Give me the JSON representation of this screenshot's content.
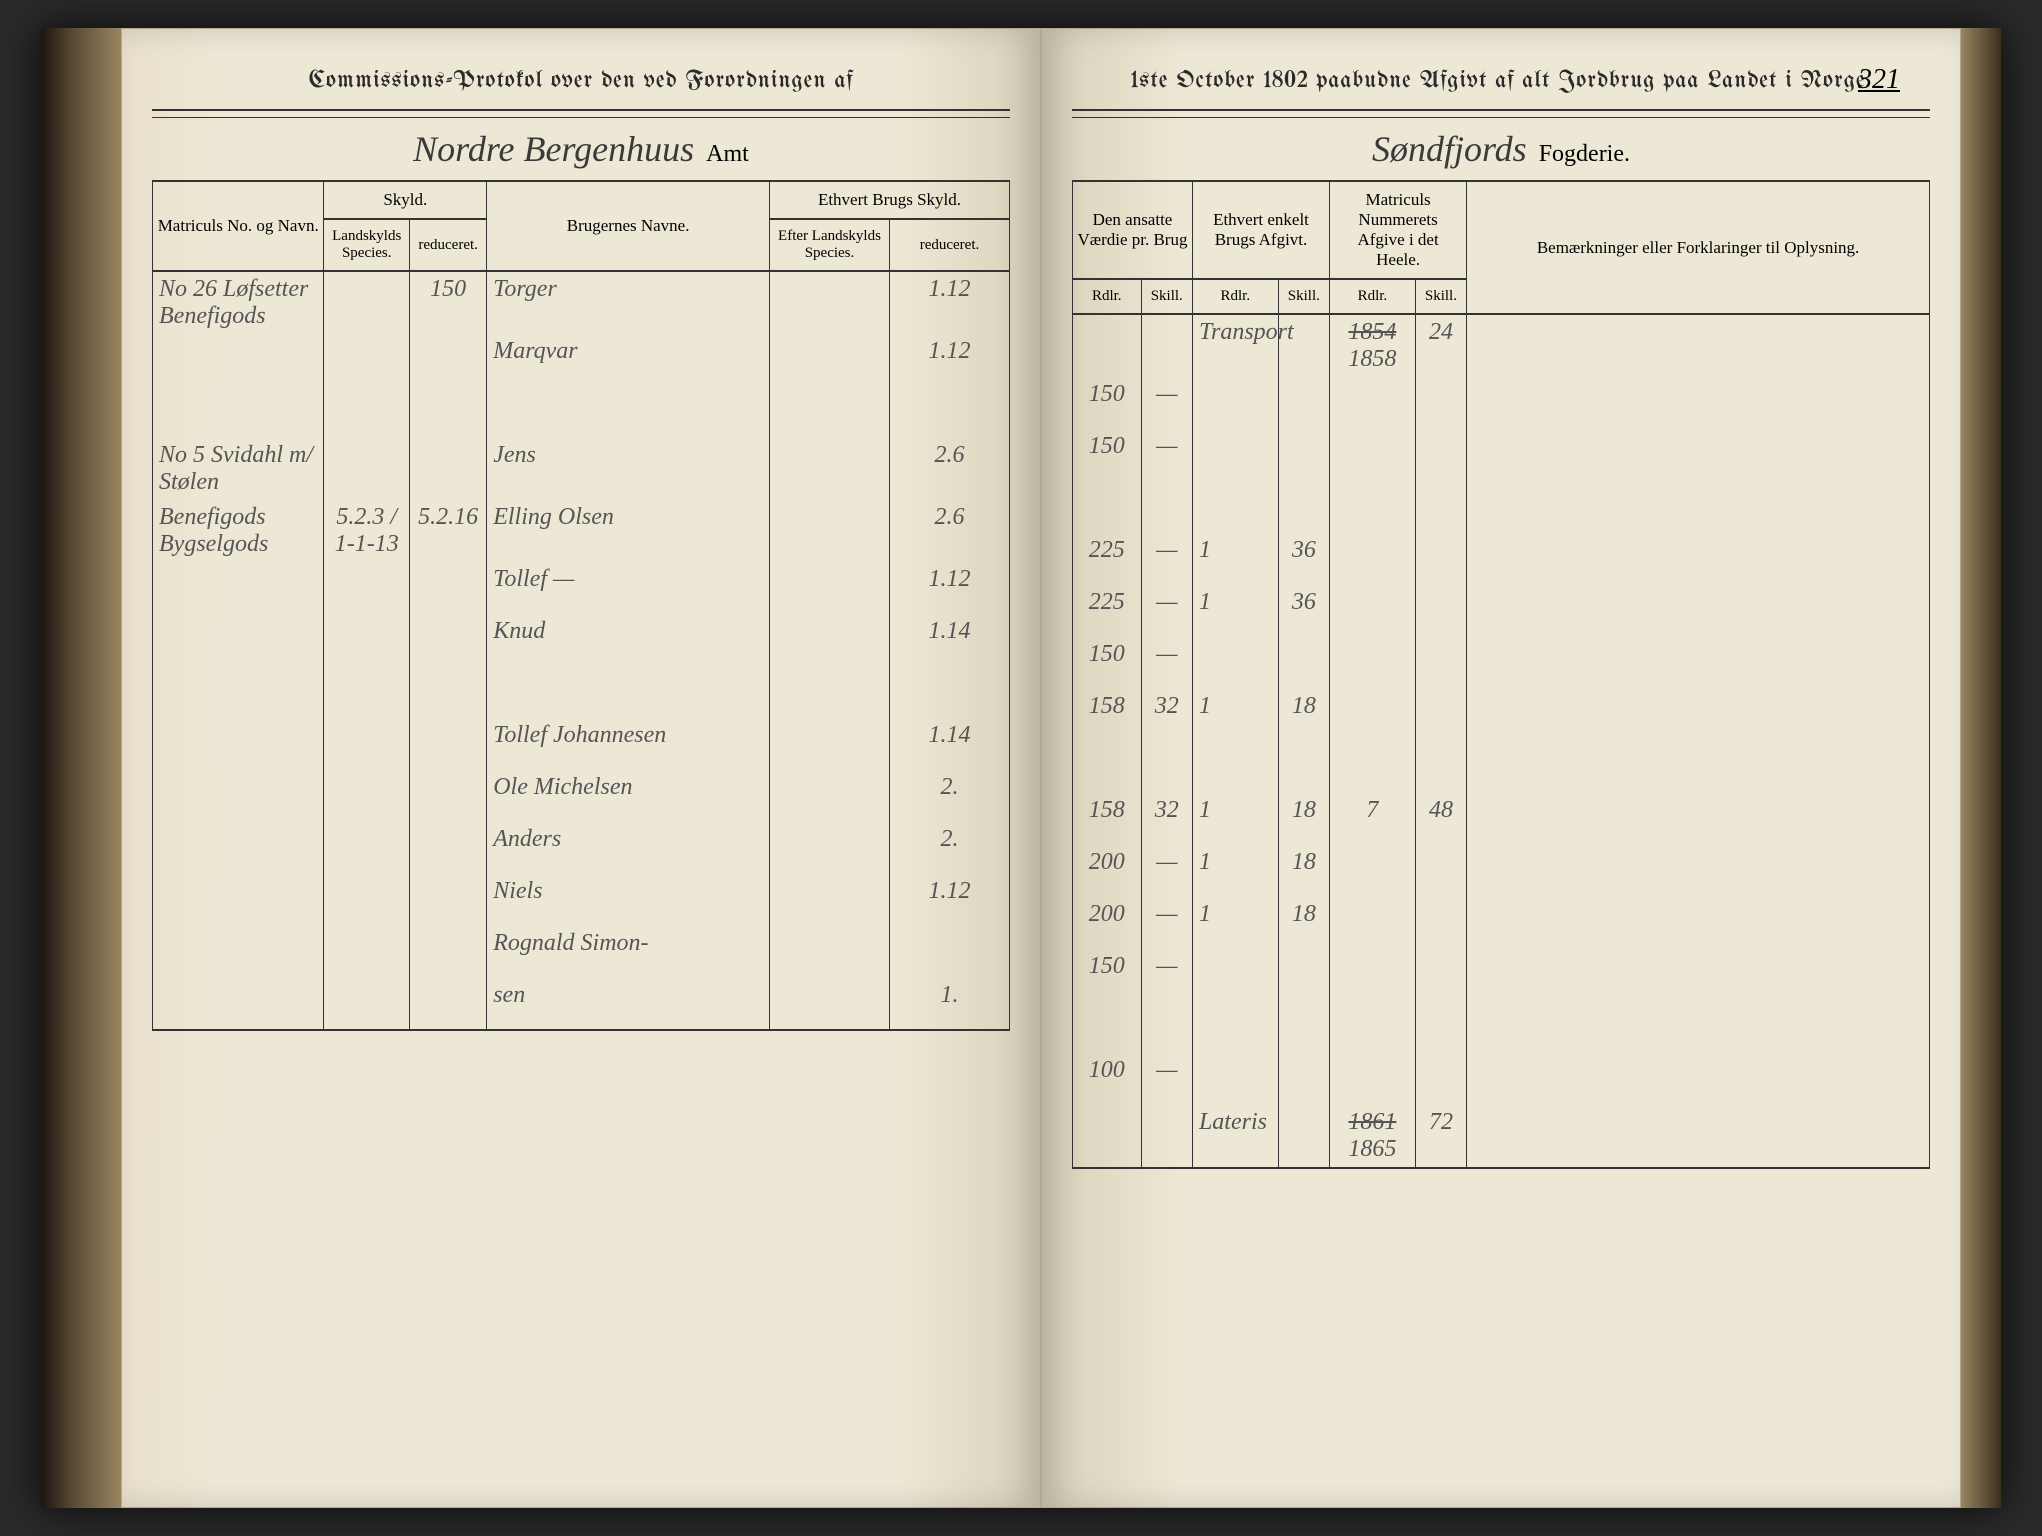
{
  "page_number": "321",
  "background_color": "#ede7d5",
  "ink_color": "#3a3a3a",
  "rule_color": "#333333",
  "left": {
    "title": "Commissions-Protokol over den ved Forordningen af",
    "region_script": "Nordre Bergenhuus",
    "region_suffix": "Amt",
    "headers": {
      "col1": "Matriculs No. og Navn.",
      "skyld": "Skyld.",
      "skyld_a": "Landskylds Species.",
      "skyld_b": "reduceret.",
      "brugere": "Brugernes Navne.",
      "brugs_skyld": "Ethvert Brugs Skyld.",
      "brugs_a": "Efter Landskylds Species.",
      "brugs_b": "reduceret."
    },
    "rows": [
      {
        "matricul": "No 26 Løfsetter",
        "sub": "Benefigods",
        "landsk": "",
        "red": "150",
        "navn": "Torger",
        "eft": "",
        "bred": "1.12"
      },
      {
        "matricul": "",
        "sub": "",
        "landsk": "",
        "red": "",
        "navn": "Marqvar",
        "eft": "",
        "bred": "1.12"
      },
      {
        "matricul": "",
        "sub": "",
        "landsk": "",
        "red": "",
        "navn": "",
        "eft": "",
        "bred": ""
      },
      {
        "matricul": "No 5 Svidahl",
        "sub": "m/ Stølen",
        "landsk": "",
        "red": "",
        "navn": "Jens",
        "eft": "",
        "bred": "2.6"
      },
      {
        "matricul": "Benefigods",
        "sub": "Bygselgods",
        "landsk": "5.2.3 / 1-1-13",
        "red": "5.2.16",
        "navn": "Elling Olsen",
        "eft": "",
        "bred": "2.6"
      },
      {
        "matricul": "",
        "sub": "",
        "landsk": "",
        "red": "",
        "navn": "Tollef —",
        "eft": "",
        "bred": "1.12"
      },
      {
        "matricul": "",
        "sub": "",
        "landsk": "",
        "red": "",
        "navn": "Knud",
        "eft": "",
        "bred": "1.14"
      },
      {
        "matricul": "",
        "sub": "",
        "landsk": "",
        "red": "",
        "navn": "",
        "eft": "",
        "bred": ""
      },
      {
        "matricul": "",
        "sub": "",
        "landsk": "",
        "red": "",
        "navn": "Tollef Johannesen",
        "eft": "",
        "bred": "1.14"
      },
      {
        "matricul": "",
        "sub": "",
        "landsk": "",
        "red": "",
        "navn": "Ole Michelsen",
        "eft": "",
        "bred": "2."
      },
      {
        "matricul": "",
        "sub": "",
        "landsk": "",
        "red": "",
        "navn": "Anders",
        "eft": "",
        "bred": "2."
      },
      {
        "matricul": "",
        "sub": "",
        "landsk": "",
        "red": "",
        "navn": "Niels",
        "eft": "",
        "bred": "1.12"
      },
      {
        "matricul": "",
        "sub": "",
        "landsk": "",
        "red": "",
        "navn": "Rognald Simon-",
        "eft": "",
        "bred": ""
      },
      {
        "matricul": "",
        "sub": "",
        "landsk": "",
        "red": "",
        "navn": "sen",
        "eft": "",
        "bred": "1."
      }
    ]
  },
  "right": {
    "title": "1ste October 1802 paabudne Afgivt af alt Jordbrug paa Landet i Norge.",
    "region_script": "Søndfjords",
    "region_suffix": "Fogderie.",
    "headers": {
      "vaerdie": "Den ansatte Værdie pr. Brug",
      "rdlr": "Rdlr.",
      "skill": "Skill.",
      "enkelt": "Ethvert enkelt Brugs Afgivt.",
      "heele": "Matriculs Nummerets Afgive i det Heele.",
      "bemerk": "Bemærkninger eller Forklaringer til Oplysning."
    },
    "rows": [
      {
        "vr": "",
        "vs": "",
        "ar": "Transport",
        "as": "",
        "hr": "1854",
        "hr2": "1858",
        "hs": "24",
        "note": ""
      },
      {
        "vr": "150",
        "vs": "—",
        "ar": "",
        "as": "",
        "hr": "",
        "hs": "",
        "note": ""
      },
      {
        "vr": "150",
        "vs": "—",
        "ar": "",
        "as": "",
        "hr": "",
        "hs": "",
        "note": ""
      },
      {
        "vr": "",
        "vs": "",
        "ar": "",
        "as": "",
        "hr": "",
        "hs": "",
        "note": ""
      },
      {
        "vr": "225",
        "vs": "—",
        "ar": "1",
        "as": "36",
        "hr": "",
        "hs": "",
        "note": ""
      },
      {
        "vr": "225",
        "vs": "—",
        "ar": "1",
        "as": "36",
        "hr": "",
        "hs": "",
        "note": ""
      },
      {
        "vr": "150",
        "vs": "—",
        "ar": "",
        "as": "",
        "hr": "",
        "hs": "",
        "note": ""
      },
      {
        "vr": "158",
        "vs": "32",
        "ar": "1",
        "as": "18",
        "hr": "",
        "hs": "",
        "note": ""
      },
      {
        "vr": "",
        "vs": "",
        "ar": "",
        "as": "",
        "hr": "",
        "hs": "",
        "note": ""
      },
      {
        "vr": "158",
        "vs": "32",
        "ar": "1",
        "as": "18",
        "hr": "7",
        "hs": "48",
        "note": ""
      },
      {
        "vr": "200",
        "vs": "—",
        "ar": "1",
        "as": "18",
        "hr": "",
        "hs": "",
        "note": ""
      },
      {
        "vr": "200",
        "vs": "—",
        "ar": "1",
        "as": "18",
        "hr": "",
        "hs": "",
        "note": ""
      },
      {
        "vr": "150",
        "vs": "—",
        "ar": "",
        "as": "",
        "hr": "",
        "hs": "",
        "note": ""
      },
      {
        "vr": "",
        "vs": "",
        "ar": "",
        "as": "",
        "hr": "",
        "hs": "",
        "note": ""
      },
      {
        "vr": "100",
        "vs": "—",
        "ar": "",
        "as": "",
        "hr": "",
        "hs": "",
        "note": ""
      },
      {
        "vr": "",
        "vs": "",
        "ar": "Lateris",
        "as": "",
        "hr": "1861",
        "hr2": "1865",
        "hs": "72",
        "note": ""
      }
    ]
  }
}
